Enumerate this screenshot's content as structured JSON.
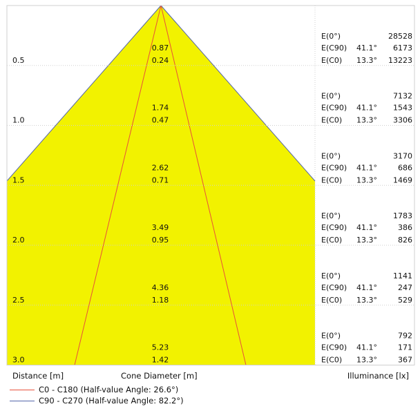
{
  "chart_data": {
    "type": "cone-diagram",
    "xlabel": "Distance [m]",
    "center_label": "Cone Diameter [m]",
    "right_label": "Illuminance [lx]",
    "rows": [
      {
        "distance": "0.5",
        "d_c0": "0.87",
        "d_c90": "0.24",
        "e0_label": "E(0°)",
        "e0": "28528",
        "ec90_label": "E(C90)",
        "ec90_angle": "41.1°",
        "ec90": "6173",
        "ec0_label": "E(C0)",
        "ec0_angle": "13.3°",
        "ec0": "13223"
      },
      {
        "distance": "1.0",
        "d_c0": "1.74",
        "d_c90": "0.47",
        "e0_label": "E(0°)",
        "e0": "7132",
        "ec90_label": "E(C90)",
        "ec90_angle": "41.1°",
        "ec90": "1543",
        "ec0_label": "E(C0)",
        "ec0_angle": "13.3°",
        "ec0": "3306"
      },
      {
        "distance": "1.5",
        "d_c0": "2.62",
        "d_c90": "0.71",
        "e0_label": "E(0°)",
        "e0": "3170",
        "ec90_label": "E(C90)",
        "ec90_angle": "41.1°",
        "ec90": "686",
        "ec0_label": "E(C0)",
        "ec0_angle": "13.3°",
        "ec0": "1469"
      },
      {
        "distance": "2.0",
        "d_c0": "3.49",
        "d_c90": "0.95",
        "e0_label": "E(0°)",
        "e0": "1783",
        "ec90_label": "E(C90)",
        "ec90_angle": "41.1°",
        "ec90": "386",
        "ec0_label": "E(C0)",
        "ec0_angle": "13.3°",
        "ec0": "826"
      },
      {
        "distance": "2.5",
        "d_c0": "4.36",
        "d_c90": "1.18",
        "e0_label": "E(0°)",
        "e0": "1141",
        "ec90_label": "E(C90)",
        "ec90_angle": "41.1°",
        "ec90": "247",
        "ec0_label": "E(C0)",
        "ec0_angle": "13.3°",
        "ec0": "529"
      },
      {
        "distance": "3.0",
        "d_c0": "5.23",
        "d_c90": "1.42",
        "e0_label": "E(0°)",
        "e0": "792",
        "ec90_label": "E(C90)",
        "ec90_angle": "41.1°",
        "ec90": "171",
        "ec0_label": "E(C0)",
        "ec0_angle": "13.3°",
        "ec0": "367"
      }
    ],
    "legend": [
      {
        "label": "C0 - C180 (Half-value Angle: 26.6°)",
        "color": "#e8503a"
      },
      {
        "label": "C90 - C270 (Half-value Angle: 82.2°)",
        "color": "#5566aa"
      }
    ],
    "colors": {
      "cone_fill": "#f2f200",
      "grid": "#cfcfcf"
    },
    "grid": true
  }
}
